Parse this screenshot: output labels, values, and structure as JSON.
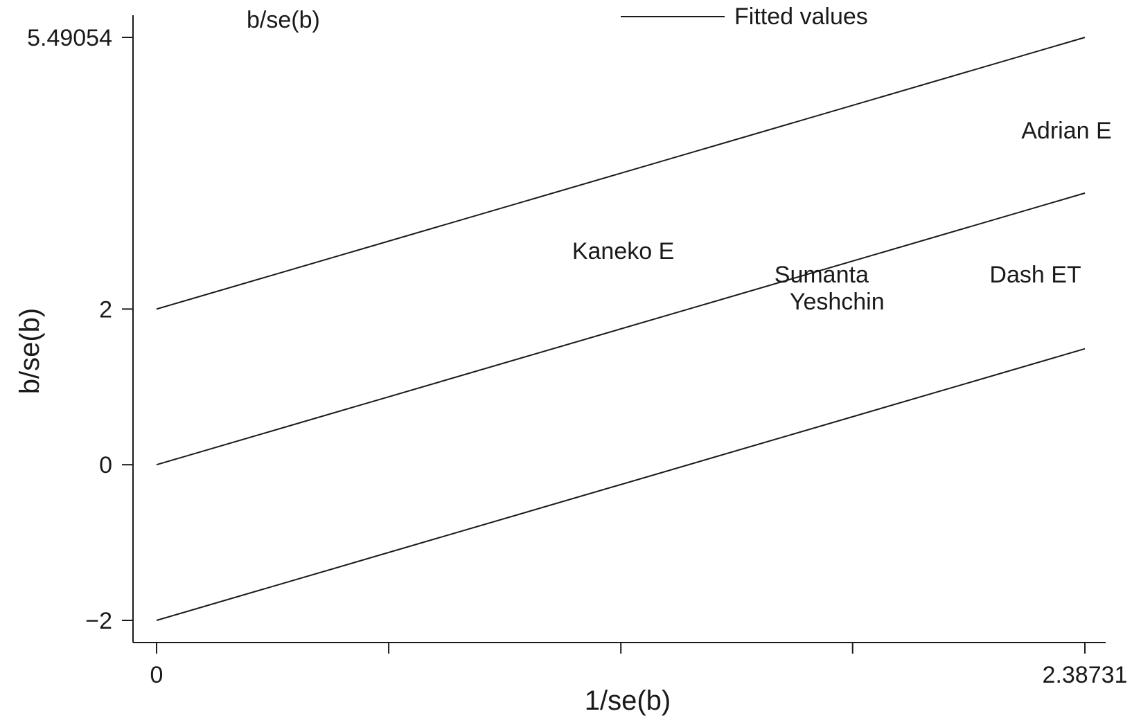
{
  "chart_data": {
    "type": "scatter",
    "title": "",
    "xlabel": "1/se(b)",
    "ylabel": "b/se(b)",
    "series_label": "b/se(b)",
    "xlim": [
      0,
      2.38731
    ],
    "ylim": [
      -2,
      5.49054
    ],
    "x_ticks": [
      {
        "value": 0,
        "label": "0"
      },
      {
        "value": 0.597,
        "label": ""
      },
      {
        "value": 1.194,
        "label": ""
      },
      {
        "value": 1.79,
        "label": ""
      },
      {
        "value": 2.38731,
        "label": "2.38731"
      }
    ],
    "y_ticks": [
      {
        "value": -2,
        "label": "−2"
      },
      {
        "value": 0,
        "label": "0"
      },
      {
        "value": 2,
        "label": "2"
      },
      {
        "value": 5.49054,
        "label": "5.49054"
      }
    ],
    "legend": {
      "placement": "top",
      "entries": [
        "Fitted values"
      ]
    },
    "fitted_lines": [
      {
        "x": [
          0,
          2.38731
        ],
        "y": [
          2,
          5.49054
        ]
      },
      {
        "x": [
          0,
          2.38731
        ],
        "y": [
          0,
          3.49
        ]
      },
      {
        "x": [
          0,
          2.38731
        ],
        "y": [
          -2,
          1.49
        ]
      }
    ],
    "points": [
      {
        "label": "Adrian E",
        "x": 2.34,
        "y": 4.3
      },
      {
        "label": "Kaneko E",
        "x": 1.2,
        "y": 2.75
      },
      {
        "label": "Sumanta",
        "x": 1.71,
        "y": 2.45
      },
      {
        "label": "Yeshchin",
        "x": 1.75,
        "y": 2.1
      },
      {
        "label": "Dash ET",
        "x": 2.26,
        "y": 2.45
      }
    ],
    "grid": false
  }
}
